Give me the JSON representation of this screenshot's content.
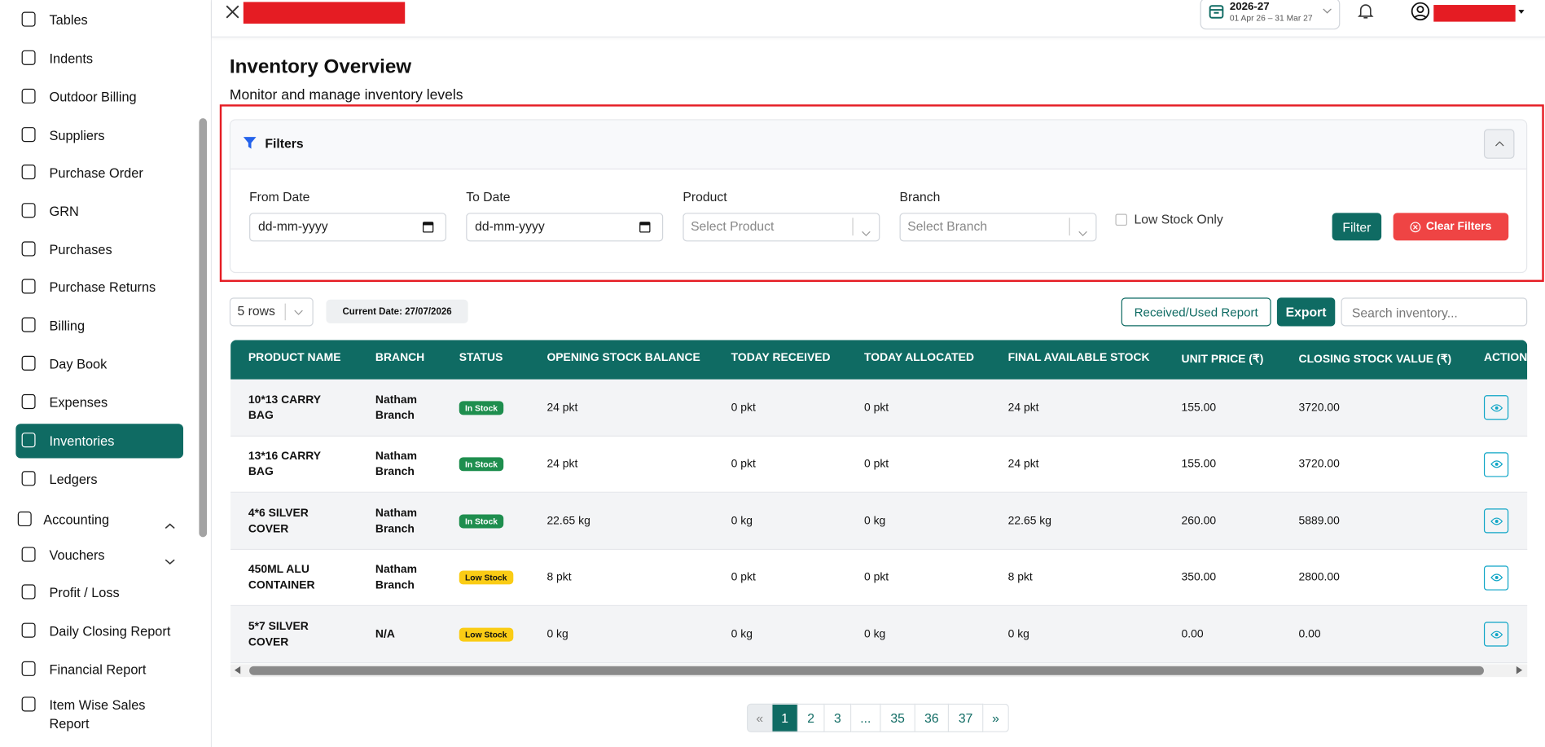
{
  "sidebar": {
    "items": [
      "Tables",
      "Indents",
      "Outdoor Billing",
      "Suppliers",
      "Purchase Order",
      "GRN",
      "Purchases",
      "Purchase Returns",
      "Billing",
      "Day Book",
      "Expenses",
      "Inventories",
      "Ledgers",
      "Accounting",
      "Vouchers",
      "Profit / Loss",
      "Daily Closing Report",
      "Financial Report",
      "Item Wise Sales Report"
    ]
  },
  "header": {
    "year": "2026-27",
    "period": "01 Apr 26 – 31 Mar 27"
  },
  "page": {
    "title": "Inventory Overview",
    "subtitle": "Monitor and manage inventory levels"
  },
  "filters": {
    "title": "Filters",
    "fields": [
      {
        "label": "From Date",
        "placeholder": "dd-mm-yyyy"
      },
      {
        "label": "To Date",
        "placeholder": "dd-mm-yyyy"
      },
      {
        "label": "Product",
        "placeholder": "Select Product"
      },
      {
        "label": "Branch",
        "placeholder": "Select Branch"
      }
    ],
    "low_stock": "Low Stock Only",
    "filter_button": "Filter",
    "clear_button": "Clear Filters"
  },
  "toolbar": {
    "rows": "5 rows",
    "current_date": "Current Date: 27/07/2026",
    "report_button": "Received/Used Report",
    "export_button": "Export",
    "search_placeholder": "Search inventory..."
  },
  "table": {
    "columns": [
      "PRODUCT NAME",
      "BRANCH",
      "STATUS",
      "OPENING STOCK BALANCE",
      "TODAY RECEIVED",
      "TODAY ALLOCATED",
      "FINAL AVAILABLE STOCK",
      "UNIT PRICE (₹)",
      "CLOSING STOCK VALUE (₹)",
      "ACTIONS"
    ],
    "rows": [
      [
        "10*13 CARRY BAG",
        "Natham Branch",
        "In Stock",
        "24 pkt",
        "0 pkt",
        "0 pkt",
        "24 pkt",
        "155.00",
        "3720.00"
      ],
      [
        "13*16 CARRY BAG",
        "Natham Branch",
        "In Stock",
        "24 pkt",
        "0 pkt",
        "0 pkt",
        "24 pkt",
        "155.00",
        "3720.00"
      ],
      [
        "4*6 SILVER COVER",
        "Natham Branch",
        "In Stock",
        "22.65 kg",
        "0 kg",
        "0 kg",
        "22.65 kg",
        "260.00",
        "5889.00"
      ],
      [
        "450ML ALU CONTAINER",
        "Natham Branch",
        "Low Stock",
        "8 pkt",
        "0 pkt",
        "0 pkt",
        "8 pkt",
        "350.00",
        "2800.00"
      ],
      [
        "5*7 SILVER COVER",
        "N/A",
        "Low Stock",
        "0 kg",
        "0 kg",
        "0 kg",
        "0 kg",
        "0.00",
        "0.00"
      ]
    ]
  },
  "pagination": [
    "«",
    "1",
    "2",
    "3",
    "...",
    "35",
    "36",
    "37",
    "»"
  ]
}
